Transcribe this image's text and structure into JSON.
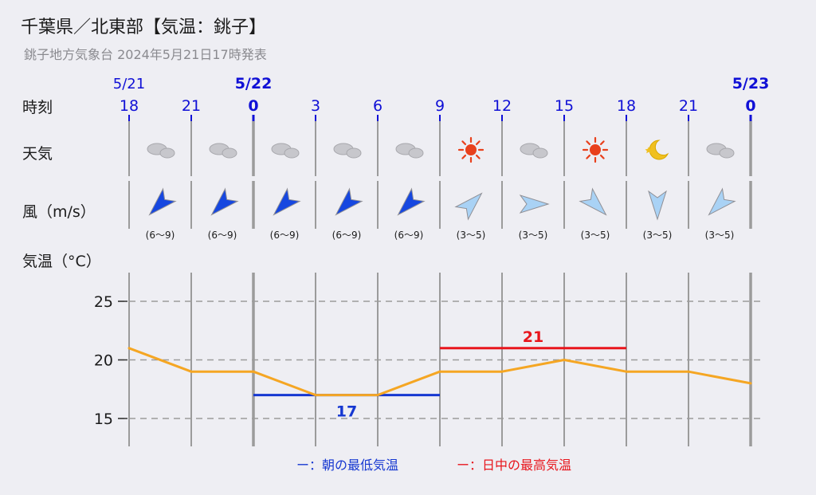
{
  "header": {
    "title": "千葉県／北東部【気温：銚子】",
    "subtitle": "銚子地方気象台 2024年5月21日17時発表"
  },
  "rows": {
    "time": "時刻",
    "weather": "天気",
    "wind": "風（m/s）",
    "temp": "気温（°C）"
  },
  "columns": [
    {
      "hour": "18",
      "date": "5/21",
      "date_emphasis": false,
      "weather": "cloudy-icon",
      "wind_dir": "SW",
      "wind_range": "(6〜9)"
    },
    {
      "hour": "21",
      "date": "",
      "date_emphasis": false,
      "weather": "cloudy-icon",
      "wind_dir": "SW",
      "wind_range": "(6〜9)"
    },
    {
      "hour": "0",
      "date": "5/22",
      "date_emphasis": true,
      "weather": "cloudy-icon",
      "wind_dir": "SW",
      "wind_range": "(6〜9)"
    },
    {
      "hour": "3",
      "date": "",
      "date_emphasis": false,
      "weather": "cloudy-icon",
      "wind_dir": "SW",
      "wind_range": "(6〜9)"
    },
    {
      "hour": "6",
      "date": "",
      "date_emphasis": false,
      "weather": "cloudy-icon",
      "wind_dir": "SW",
      "wind_range": "(6〜9)"
    },
    {
      "hour": "9",
      "date": "",
      "date_emphasis": false,
      "weather": "sun-icon",
      "wind_dir": "NE",
      "wind_range": "(3〜5)"
    },
    {
      "hour": "12",
      "date": "",
      "date_emphasis": false,
      "weather": "cloudy-icon",
      "wind_dir": "E",
      "wind_range": "(3〜5)"
    },
    {
      "hour": "15",
      "date": "",
      "date_emphasis": false,
      "weather": "sun-icon",
      "wind_dir": "SE",
      "wind_range": "(3〜5)"
    },
    {
      "hour": "18",
      "date": "",
      "date_emphasis": false,
      "weather": "moon-icon",
      "wind_dir": "S",
      "wind_range": "(3〜5)"
    },
    {
      "hour": "21",
      "date": "",
      "date_emphasis": false,
      "weather": "cloudy-icon",
      "wind_dir": "SW",
      "wind_range": "(3〜5)"
    },
    {
      "hour": "0",
      "date": "5/23",
      "date_emphasis": true,
      "weather": "",
      "wind_dir": "",
      "wind_range": ""
    }
  ],
  "colors": {
    "temp_line": "#f5a623",
    "min_line": "#1537d1",
    "max_line": "#e8151c",
    "wind_strong_fill": "#1647e0",
    "wind_weak_fill": "#a9d2f5",
    "grid": "#9b9b9b",
    "date_blue": "#1010d6",
    "sun": "#e8401c",
    "moon": "#f0c020"
  },
  "chart_data": {
    "type": "line",
    "x": [
      "5/21 18",
      "5/21 21",
      "5/22 0",
      "5/22 3",
      "5/22 6",
      "5/22 9",
      "5/22 12",
      "5/22 15",
      "5/22 18",
      "5/22 21",
      "5/23 0"
    ],
    "series": [
      {
        "values": [
          21,
          19,
          19,
          17,
          17,
          19,
          19,
          20,
          19,
          19,
          18
        ]
      }
    ],
    "ylim": [
      12.5,
      27.5
    ],
    "yticks": [
      15,
      20,
      25
    ],
    "grid": true,
    "min_temp": {
      "value": 17,
      "from_index": 2,
      "to_index": 5,
      "label": "17"
    },
    "max_temp": {
      "value": 21,
      "from_index": 5,
      "to_index": 8,
      "label": "21"
    }
  },
  "legend": {
    "min_label": "ー：朝の最低気温",
    "max_label": "ー：日中の最高気温"
  }
}
